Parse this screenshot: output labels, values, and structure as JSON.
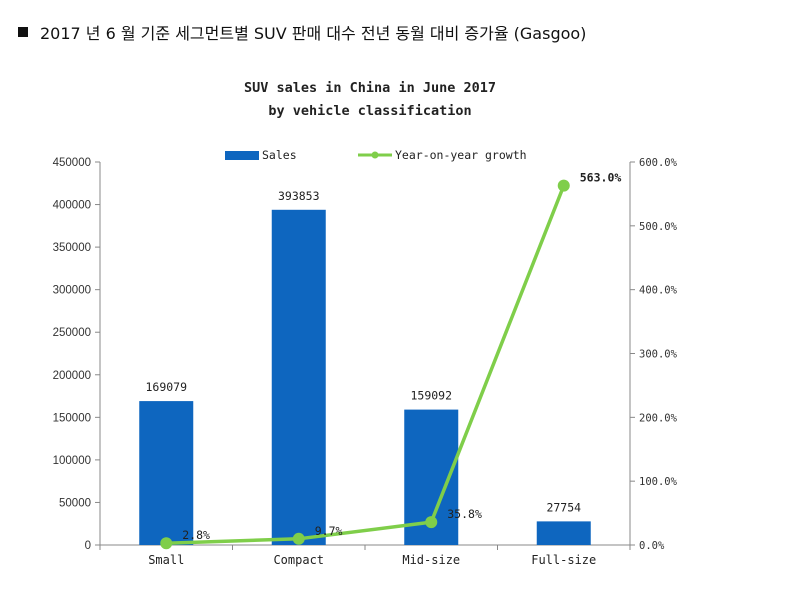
{
  "heading": "2017 년 6 월 기준 세그먼트별 SUV 판매 대수 전년 동월 대비 증가율 (Gasgoo)",
  "chart_data": {
    "type": "bar",
    "title": "SUV sales in China in June 2017",
    "subtitle": "by vehicle classification",
    "categories": [
      "Small",
      "Compact",
      "Mid-size",
      "Full-size"
    ],
    "series": [
      {
        "name": "Sales",
        "kind": "bar",
        "axis": "left",
        "color": "#0e66bf",
        "values": [
          169079,
          393853,
          159092,
          27754
        ],
        "labels": [
          "169079",
          "393853",
          "159092",
          "27754"
        ]
      },
      {
        "name": "Year-on-year growth",
        "kind": "line",
        "axis": "right",
        "color": "#7fce4a",
        "values": [
          2.8,
          9.7,
          35.8,
          563.0
        ],
        "labels": [
          "2.8%",
          "9.7%",
          "35.8%",
          "563.0%"
        ]
      }
    ],
    "y_left": {
      "ylim": [
        0,
        450000
      ],
      "ticks": [
        0,
        50000,
        100000,
        150000,
        200000,
        250000,
        300000,
        350000,
        400000,
        450000
      ],
      "tick_labels": [
        "0",
        "50000",
        "100000",
        "150000",
        "200000",
        "250000",
        "300000",
        "350000",
        "400000",
        "450000"
      ]
    },
    "y_right": {
      "ylim": [
        0,
        600
      ],
      "ticks": [
        0,
        100,
        200,
        300,
        400,
        500,
        600
      ],
      "tick_labels": [
        "0.0%",
        "100.0%",
        "200.0%",
        "300.0%",
        "400.0%",
        "500.0%",
        "600.0%"
      ]
    },
    "grid": false,
    "legend": "top"
  }
}
